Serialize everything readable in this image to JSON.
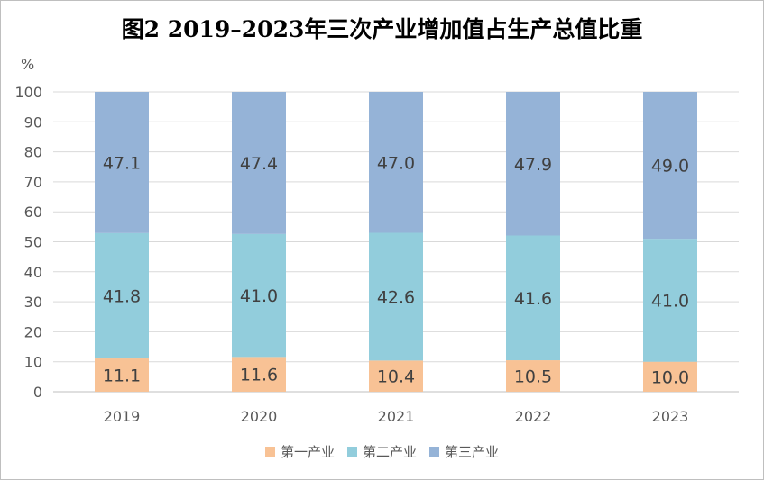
{
  "chart_data": {
    "type": "bar",
    "stacked": true,
    "title": "图2  2019–2023年三次产业增加值占生产总值比重",
    "ylabel": "%",
    "xlabel": "",
    "ylim": [
      0,
      100
    ],
    "yticks": [
      0,
      10,
      20,
      30,
      40,
      50,
      60,
      70,
      80,
      90,
      100
    ],
    "categories": [
      "2019",
      "2020",
      "2021",
      "2022",
      "2023"
    ],
    "series": [
      {
        "name": "第一产业",
        "color": "#f8c295",
        "values": [
          11.1,
          11.6,
          10.4,
          10.5,
          10.0
        ]
      },
      {
        "name": "第二产业",
        "color": "#92cddc",
        "values": [
          41.8,
          41.0,
          42.6,
          41.6,
          41.0
        ]
      },
      {
        "name": "第三产业",
        "color": "#95b3d7",
        "values": [
          47.1,
          47.4,
          47.0,
          47.9,
          49.0
        ]
      }
    ],
    "grid": true,
    "legend": "bottom"
  }
}
